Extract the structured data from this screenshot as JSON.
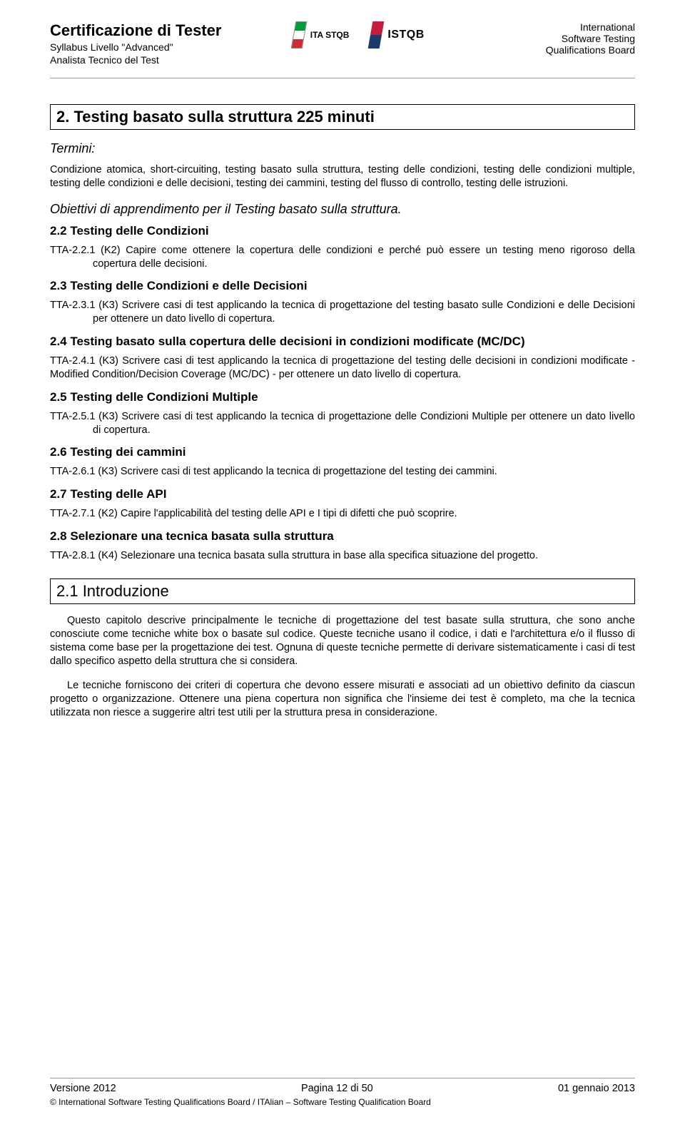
{
  "header": {
    "title": "Certificazione di Tester",
    "sub1": "Syllabus Livello \"Advanced\"",
    "sub2": "Analista Tecnico del Test",
    "right1": "International",
    "right2": "Software Testing",
    "right3": "Qualifications Board",
    "logo1_text": "ITA STQB",
    "logo2_text": "ISTQB"
  },
  "chapter": {
    "title": "2. Testing basato sulla struttura 225 minuti"
  },
  "termini": {
    "label": "Termini:",
    "body": "Condizione atomica, short-circuiting, testing basato sulla struttura, testing delle condizioni, testing delle condizioni multiple, testing delle condizioni e delle decisioni, testing dei cammini, testing del flusso di controllo, testing delle istruzioni."
  },
  "objectives": {
    "title": "Obiettivi di apprendimento per il Testing basato sulla struttura."
  },
  "sections": [
    {
      "heading": "2.2 Testing delle Condizioni",
      "items": [
        {
          "id": "TTA-2.2.1",
          "text": "(K2) Capire come ottenere la copertura delle condizioni e perché può essere un testing meno rigoroso della copertura delle decisioni.",
          "indent": true
        }
      ]
    },
    {
      "heading": "2.3 Testing delle Condizioni e delle Decisioni",
      "items": [
        {
          "id": "TTA-2.3.1",
          "text": "(K3) Scrivere casi di test applicando la tecnica di progettazione del testing basato sulle Condizioni e delle Decisioni per ottenere un dato livello di copertura.",
          "indent": true
        }
      ]
    },
    {
      "heading": "2.4 Testing basato sulla copertura delle decisioni in condizioni modificate (MC/DC)",
      "items": [
        {
          "id": "TTA-2.4.1",
          "text": "(K3) Scrivere casi di test applicando la tecnica di progettazione del testing delle decisioni in condizioni modificate - Modified Condition/Decision Coverage (MC/DC) - per ottenere un dato livello di copertura.",
          "indent": false
        }
      ]
    },
    {
      "heading": "2.5 Testing delle Condizioni Multiple",
      "items": [
        {
          "id": "TTA-2.5.1",
          "text": "(K3) Scrivere casi di test applicando la tecnica di progettazione delle Condizioni Multiple per ottenere un dato livello di copertura.",
          "indent": true
        }
      ]
    },
    {
      "heading": "2.6 Testing dei cammini",
      "items": [
        {
          "id": "TTA-2.6.1",
          "text": "(K3) Scrivere casi di test applicando la tecnica di progettazione del testing dei cammini.",
          "indent": false
        }
      ]
    },
    {
      "heading": "2.7 Testing delle API",
      "items": [
        {
          "id": "TTA-2.7.1",
          "text": "(K2) Capire l'applicabilità del testing delle API e I tipi di difetti che può scoprire.",
          "indent": false
        }
      ]
    },
    {
      "heading": "2.8 Selezionare una tecnica basata sulla struttura",
      "items": [
        {
          "id": "TTA-2.8.1",
          "text": "(K4) Selezionare una tecnica basata sulla struttura in base alla specifica situazione del progetto.",
          "indent": true
        }
      ]
    }
  ],
  "intro": {
    "title": "2.1 Introduzione",
    "p1": "Questo capitolo descrive principalmente le tecniche di progettazione del test basate sulla struttura, che sono anche conosciute come tecniche white box o basate sul codice. Queste tecniche usano il codice, i dati e l'architettura e/o il flusso di sistema come base per la progettazione dei test. Ognuna di queste tecniche permette di derivare sistematicamente i casi di test dallo specifico aspetto della struttura che si considera.",
    "p2": "Le tecniche forniscono dei criteri di copertura che devono essere misurati e associati ad un obiettivo definito da ciascun progetto o organizzazione. Ottenere una piena copertura non significa che l'insieme dei test è completo, ma che la tecnica utilizzata non riesce a suggerire altri test utili per la struttura presa in considerazione."
  },
  "footer": {
    "left": "Versione 2012",
    "center": "Pagina 12 di 50",
    "right": "01 gennaio 2013",
    "sub": "© International Software Testing Qualifications Board / ITAlian – Software Testing Qualification Board"
  }
}
